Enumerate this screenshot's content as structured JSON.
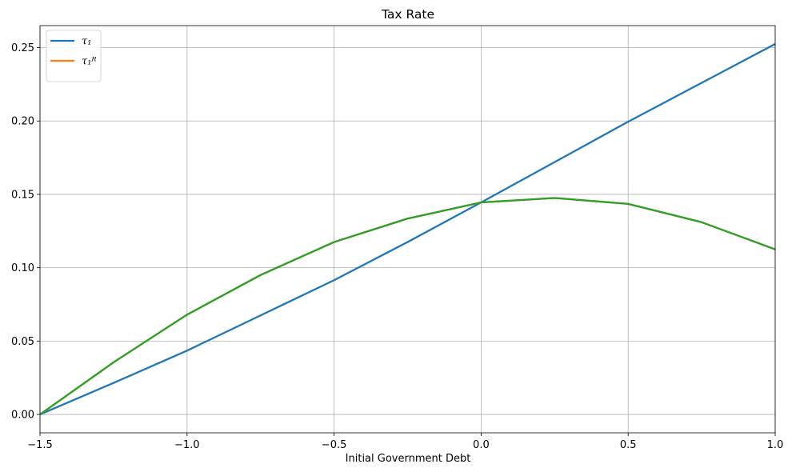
{
  "chart_data": {
    "type": "line",
    "title": "Tax Rate",
    "xlabel": "Initial Government Debt",
    "ylabel": "",
    "xlim": [
      -1.5,
      1.0
    ],
    "ylim": [
      -0.0125,
      0.265
    ],
    "grid": true,
    "legend_position": "top-left",
    "x_ticks": [
      -1.5,
      -1.0,
      -0.5,
      0.0,
      0.5,
      1.0
    ],
    "x_tick_labels": [
      "−1.5",
      "−1.0",
      "−0.5",
      "0.0",
      "0.5",
      "1.0"
    ],
    "y_ticks": [
      0.0,
      0.05,
      0.1,
      0.15,
      0.2,
      0.25
    ],
    "y_tick_labels": [
      "0.00",
      "0.05",
      "0.10",
      "0.15",
      "0.20",
      "0.25"
    ],
    "x": [
      -1.5,
      -1.25,
      -1.0,
      -0.75,
      -0.5,
      -0.25,
      0.0,
      0.25,
      0.5,
      0.75,
      1.0
    ],
    "series": [
      {
        "name": "τ₁",
        "color": "#1f77b4",
        "in_legend": true,
        "values": [
          0.0,
          0.0215,
          0.0435,
          0.0675,
          0.0915,
          0.1175,
          0.1445,
          0.172,
          0.1995,
          0.226,
          0.2525
        ]
      },
      {
        "name": "τ₁ᴿ",
        "color": "#ff7f0e",
        "in_legend": true,
        "values": [
          0.0,
          0.0355,
          0.068,
          0.095,
          0.1175,
          0.1335,
          0.1445,
          0.1475,
          0.1435,
          0.131,
          0.1125
        ]
      },
      {
        "name": "",
        "color": "#2ca02c",
        "in_legend": false,
        "values": [
          0.0,
          0.0355,
          0.068,
          0.095,
          0.1175,
          0.1335,
          0.1445,
          0.1475,
          0.1435,
          0.131,
          0.1125
        ]
      }
    ]
  }
}
